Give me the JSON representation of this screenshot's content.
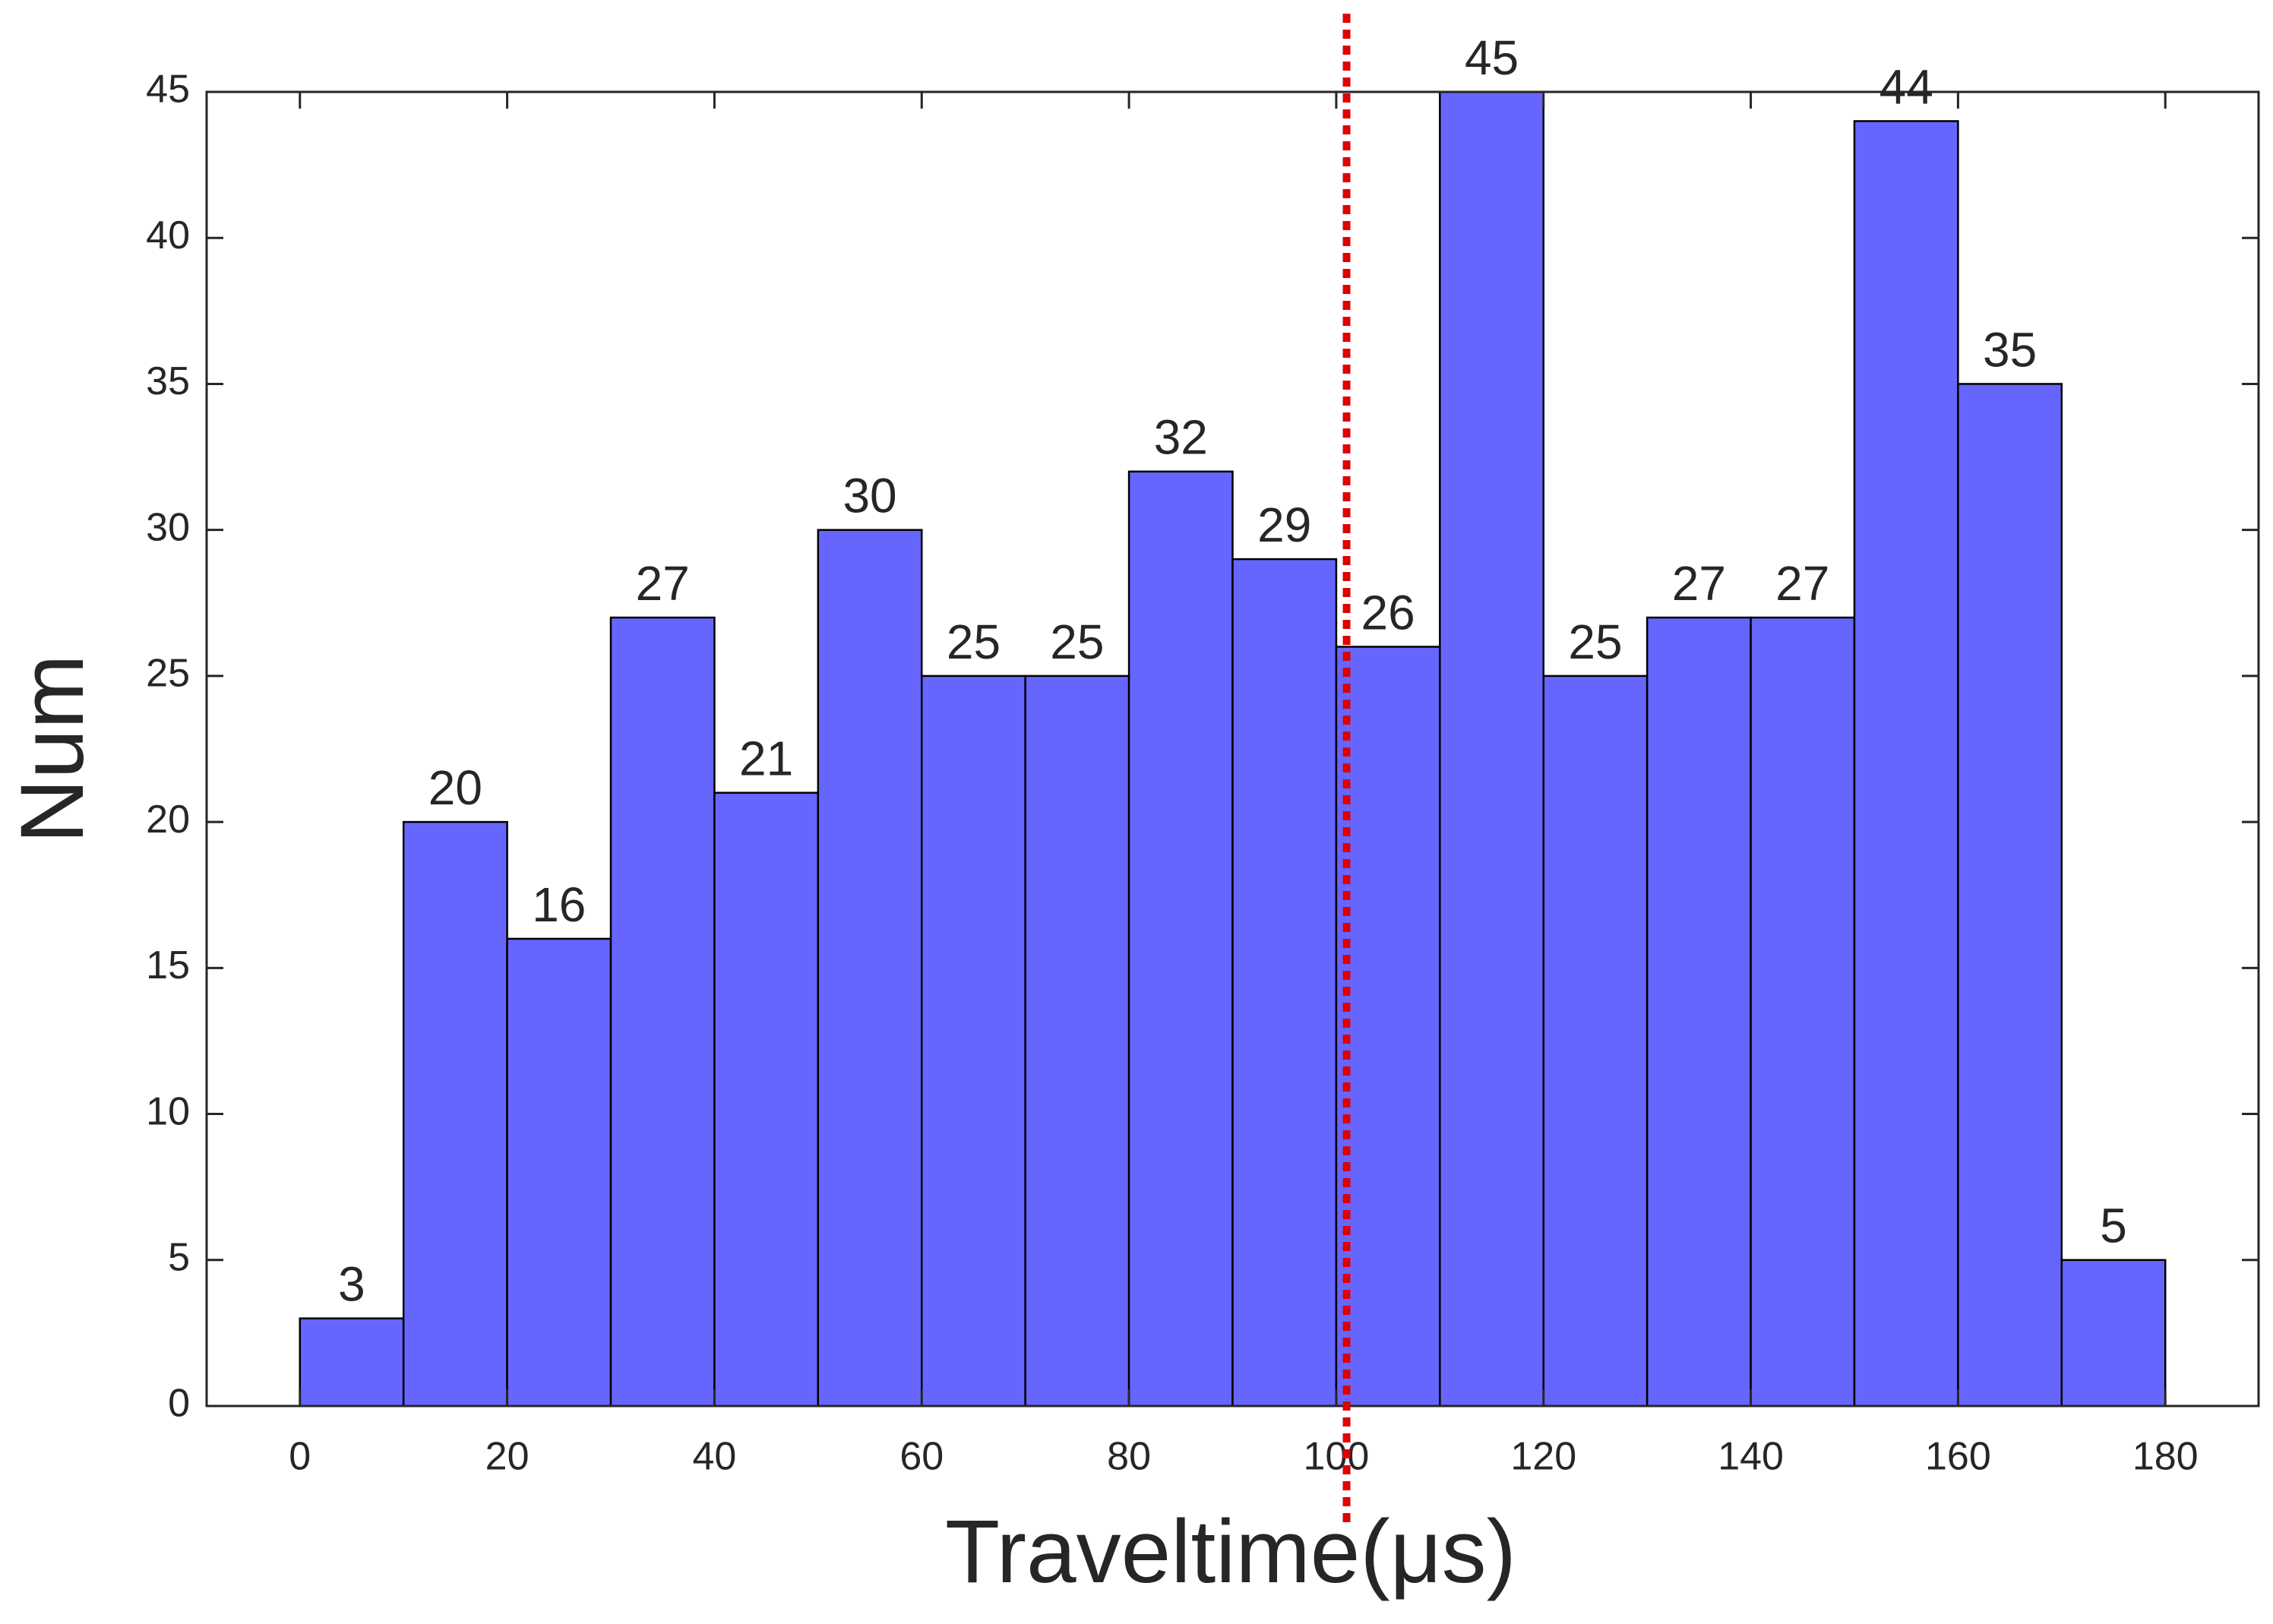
{
  "chart_data": {
    "type": "histogram",
    "xlabel": "Traveltime(μs)",
    "ylabel": "Num",
    "bins": [
      0,
      10,
      20,
      30,
      40,
      50,
      60,
      70,
      80,
      90,
      100,
      110,
      120,
      130,
      140,
      150,
      160,
      170,
      180
    ],
    "counts": [
      3,
      20,
      16,
      27,
      21,
      30,
      25,
      25,
      32,
      29,
      26,
      45,
      25,
      27,
      27,
      44,
      35,
      5
    ],
    "color": "#6666ff",
    "xlim": [
      -9,
      189
    ],
    "ylim": [
      0,
      45
    ],
    "xticks": [
      0,
      20,
      40,
      60,
      80,
      100,
      120,
      140,
      160,
      180
    ],
    "yticks": [
      0,
      5,
      10,
      15,
      20,
      25,
      30,
      35,
      40,
      45
    ],
    "reference_line": {
      "x": 101,
      "color": "#e00000",
      "style": "dotted"
    }
  }
}
